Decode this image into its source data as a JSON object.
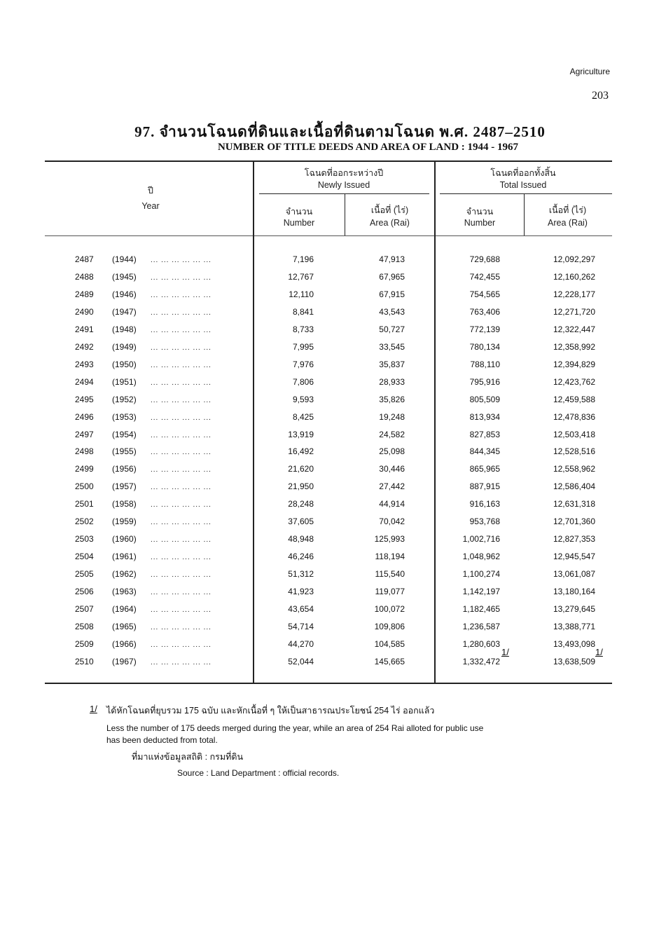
{
  "header": {
    "section": "Agriculture",
    "page_number": "203"
  },
  "title": {
    "thai": "97. จำนวนโฉนดที่ดินและเนื้อที่ดินตามโฉนด พ.ศ. 2487–2510",
    "english": "NUMBER OF TITLE DEEDS AND AREA OF LAND : 1944 - 1967"
  },
  "columns": {
    "year_th": "ปี",
    "year_en": "Year",
    "newly_th": "โฉนดที่ออกระหว่างปี",
    "newly_en": "Newly Issued",
    "total_th": "โฉนดที่ออกทั้งสิ้น",
    "total_en": "Total Issued",
    "number_th": "จำนวน",
    "number_en": "Number",
    "area_th": "เนื้อที่ (ไร่)",
    "area_en": "Area (Rai)"
  },
  "rows": [
    {
      "be": "2487",
      "ad": "(1944)",
      "new_number": "7,196",
      "new_area": "47,913",
      "total_number": "729,688",
      "total_area": "12,092,297"
    },
    {
      "be": "2488",
      "ad": "(1945)",
      "new_number": "12,767",
      "new_area": "67,965",
      "total_number": "742,455",
      "total_area": "12,160,262"
    },
    {
      "be": "2489",
      "ad": "(1946)",
      "new_number": "12,110",
      "new_area": "67,915",
      "total_number": "754,565",
      "total_area": "12,228,177"
    },
    {
      "be": "2490",
      "ad": "(1947)",
      "new_number": "8,841",
      "new_area": "43,543",
      "total_number": "763,406",
      "total_area": "12,271,720"
    },
    {
      "be": "2491",
      "ad": "(1948)",
      "new_number": "8,733",
      "new_area": "50,727",
      "total_number": "772,139",
      "total_area": "12,322,447"
    },
    {
      "be": "2492",
      "ad": "(1949)",
      "new_number": "7,995",
      "new_area": "33,545",
      "total_number": "780,134",
      "total_area": "12,358,992"
    },
    {
      "be": "2493",
      "ad": "(1950)",
      "new_number": "7,976",
      "new_area": "35,837",
      "total_number": "788,110",
      "total_area": "12,394,829"
    },
    {
      "be": "2494",
      "ad": "(1951)",
      "new_number": "7,806",
      "new_area": "28,933",
      "total_number": "795,916",
      "total_area": "12,423,762"
    },
    {
      "be": "2495",
      "ad": "(1952)",
      "new_number": "9,593",
      "new_area": "35,826",
      "total_number": "805,509",
      "total_area": "12,459,588"
    },
    {
      "be": "2496",
      "ad": "(1953)",
      "new_number": "8,425",
      "new_area": "19,248",
      "total_number": "813,934",
      "total_area": "12,478,836"
    },
    {
      "be": "2497",
      "ad": "(1954)",
      "new_number": "13,919",
      "new_area": "24,582",
      "total_number": "827,853",
      "total_area": "12,503,418"
    },
    {
      "be": "2498",
      "ad": "(1955)",
      "new_number": "16,492",
      "new_area": "25,098",
      "total_number": "844,345",
      "total_area": "12,528,516"
    },
    {
      "be": "2499",
      "ad": "(1956)",
      "new_number": "21,620",
      "new_area": "30,446",
      "total_number": "865,965",
      "total_area": "12,558,962"
    },
    {
      "be": "2500",
      "ad": "(1957)",
      "new_number": "21,950",
      "new_area": "27,442",
      "total_number": "887,915",
      "total_area": "12,586,404"
    },
    {
      "be": "2501",
      "ad": "(1958)",
      "new_number": "28,248",
      "new_area": "44,914",
      "total_number": "916,163",
      "total_area": "12,631,318"
    },
    {
      "be": "2502",
      "ad": "(1959)",
      "new_number": "37,605",
      "new_area": "70,042",
      "total_number": "953,768",
      "total_area": "12,701,360"
    },
    {
      "be": "2503",
      "ad": "(1960)",
      "new_number": "48,948",
      "new_area": "125,993",
      "total_number": "1,002,716",
      "total_area": "12,827,353"
    },
    {
      "be": "2504",
      "ad": "(1961)",
      "new_number": "46,246",
      "new_area": "118,194",
      "total_number": "1,048,962",
      "total_area": "12,945,547"
    },
    {
      "be": "2505",
      "ad": "(1962)",
      "new_number": "51,312",
      "new_area": "115,540",
      "total_number": "1,100,274",
      "total_area": "13,061,087"
    },
    {
      "be": "2506",
      "ad": "(1963)",
      "new_number": "41,923",
      "new_area": "119,077",
      "total_number": "1,142,197",
      "total_area": "13,180,164"
    },
    {
      "be": "2507",
      "ad": "(1964)",
      "new_number": "43,654",
      "new_area": "100,072",
      "total_number": "1,182,465",
      "total_area": "13,279,645"
    },
    {
      "be": "2508",
      "ad": "(1965)",
      "new_number": "54,714",
      "new_area": "109,806",
      "total_number": "1,236,587",
      "total_area": "13,388,771"
    },
    {
      "be": "2509",
      "ad": "(1966)",
      "new_number": "44,270",
      "new_area": "104,585",
      "total_number": "1,280,603",
      "total_area": "13,493,098"
    },
    {
      "be": "2510",
      "ad": "(1967)",
      "new_number": "52,044",
      "new_area": "145,665",
      "total_number": "1,332,472",
      "total_area": "13,638,509",
      "footnote_mark": "1/"
    }
  ],
  "leader_dots": "... ... ... ... ... ...",
  "footnote": {
    "mark": "1/",
    "thai": "ได้หักโฉนดที่ยุบรวม 175 ฉบับ และหักเนื้อที่ ๆ ให้เป็นสาธารณประโยชน์ 254 ไร่ ออกแล้ว",
    "english_line1": "Less the number of 175  deeds merged during the year, while an area of 254 Rai alloted for public use",
    "english_line2": "has been deducted from total.",
    "source_th": "ที่มาแห่งข้อมูลสถิติ : กรมที่ดิน",
    "source_en": "Source : Land Department : official records."
  }
}
